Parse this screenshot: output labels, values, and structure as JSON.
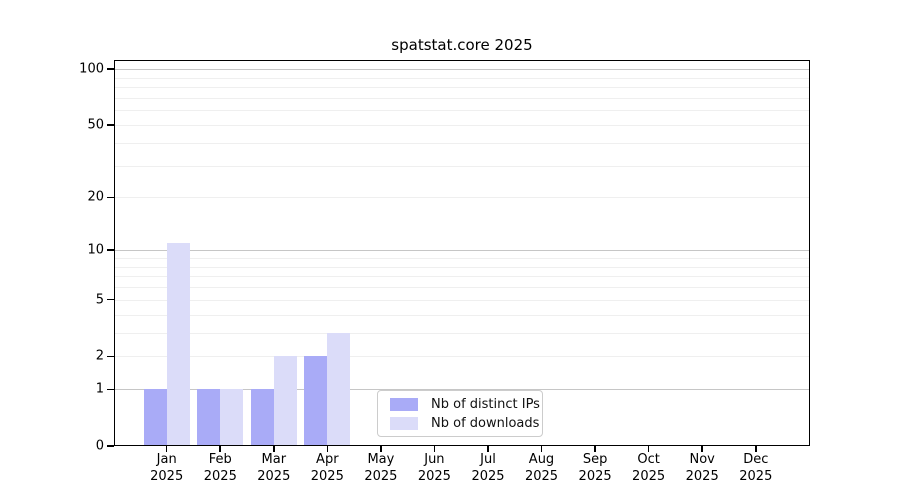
{
  "chart_data": {
    "type": "bar",
    "title": "spatstat.core 2025",
    "categories": [
      "Jan 2025",
      "Feb 2025",
      "Mar 2025",
      "Apr 2025",
      "May 2025",
      "Jun 2025",
      "Jul 2025",
      "Aug 2025",
      "Sep 2025",
      "Oct 2025",
      "Nov 2025",
      "Dec 2025"
    ],
    "months": [
      {
        "label": "Jan",
        "year": "2025"
      },
      {
        "label": "Feb",
        "year": "2025"
      },
      {
        "label": "Mar",
        "year": "2025"
      },
      {
        "label": "Apr",
        "year": "2025"
      },
      {
        "label": "May",
        "year": "2025"
      },
      {
        "label": "Jun",
        "year": "2025"
      },
      {
        "label": "Jul",
        "year": "2025"
      },
      {
        "label": "Aug",
        "year": "2025"
      },
      {
        "label": "Sep",
        "year": "2025"
      },
      {
        "label": "Oct",
        "year": "2025"
      },
      {
        "label": "Nov",
        "year": "2025"
      },
      {
        "label": "Dec",
        "year": "2025"
      }
    ],
    "series": [
      {
        "name": "Nb of distinct IPs",
        "color": "#a9abf7",
        "values": [
          1,
          1,
          1,
          2,
          0,
          0,
          0,
          0,
          0,
          0,
          0,
          0
        ]
      },
      {
        "name": "Nb of downloads",
        "color": "#dbdcf9",
        "values": [
          11,
          1,
          2,
          3,
          0,
          0,
          0,
          0,
          0,
          0,
          0,
          0
        ]
      }
    ],
    "xlabel": "",
    "ylabel": "",
    "yscale": "log1p",
    "ylim": [
      0,
      112
    ],
    "yticks": [
      {
        "value": 100,
        "label": "100"
      },
      {
        "value": 50,
        "label": "50"
      },
      {
        "value": 20,
        "label": "20"
      },
      {
        "value": 10,
        "label": "10"
      },
      {
        "value": 5,
        "label": "5"
      },
      {
        "value": 2,
        "label": "2"
      },
      {
        "value": 1,
        "label": "1"
      },
      {
        "value": 0,
        "label": "0"
      }
    ],
    "major_gridlines": [
      1,
      10,
      100
    ],
    "minor_gridlines": [
      2,
      3,
      4,
      5,
      6,
      7,
      8,
      9,
      20,
      30,
      40,
      50,
      60,
      70,
      80,
      90
    ],
    "grid": true,
    "legend_position": "bottom-center"
  }
}
